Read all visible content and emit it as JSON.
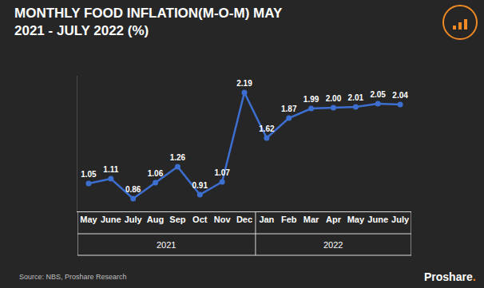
{
  "chart_data": {
    "type": "line",
    "title": "MONTHLY FOOD INFLATION(M-O-M) MAY 2021 - JULY 2022 (%)",
    "categories": [
      "May",
      "June",
      "July",
      "Aug",
      "Sep",
      "Oct",
      "Nov",
      "Dec",
      "Jan",
      "Feb",
      "Mar",
      "Apr",
      "May",
      "June",
      "July"
    ],
    "values": [
      1.05,
      1.11,
      0.86,
      1.06,
      1.26,
      0.91,
      1.07,
      2.19,
      1.62,
      1.87,
      1.99,
      2.0,
      2.01,
      2.05,
      2.04
    ],
    "value_labels": [
      "1.05",
      "1.11",
      "0.86",
      "1.06",
      "1.26",
      "0.91",
      "1.07",
      "2.19",
      "1.62",
      "1.87",
      "1.99",
      "2.00",
      "2.01",
      "2.05",
      "2.04"
    ],
    "color": "#3d6fd1",
    "marker": "circle",
    "data_labels": true,
    "grid": false,
    "tick_labels": "x",
    "ylim": [
      0.7,
      2.4
    ],
    "year_groups": [
      {
        "label": "2021",
        "count": 8
      },
      {
        "label": "2022",
        "count": 7
      }
    ],
    "source": "Source: NBS, Proshare Research",
    "logo": "Proshare."
  }
}
